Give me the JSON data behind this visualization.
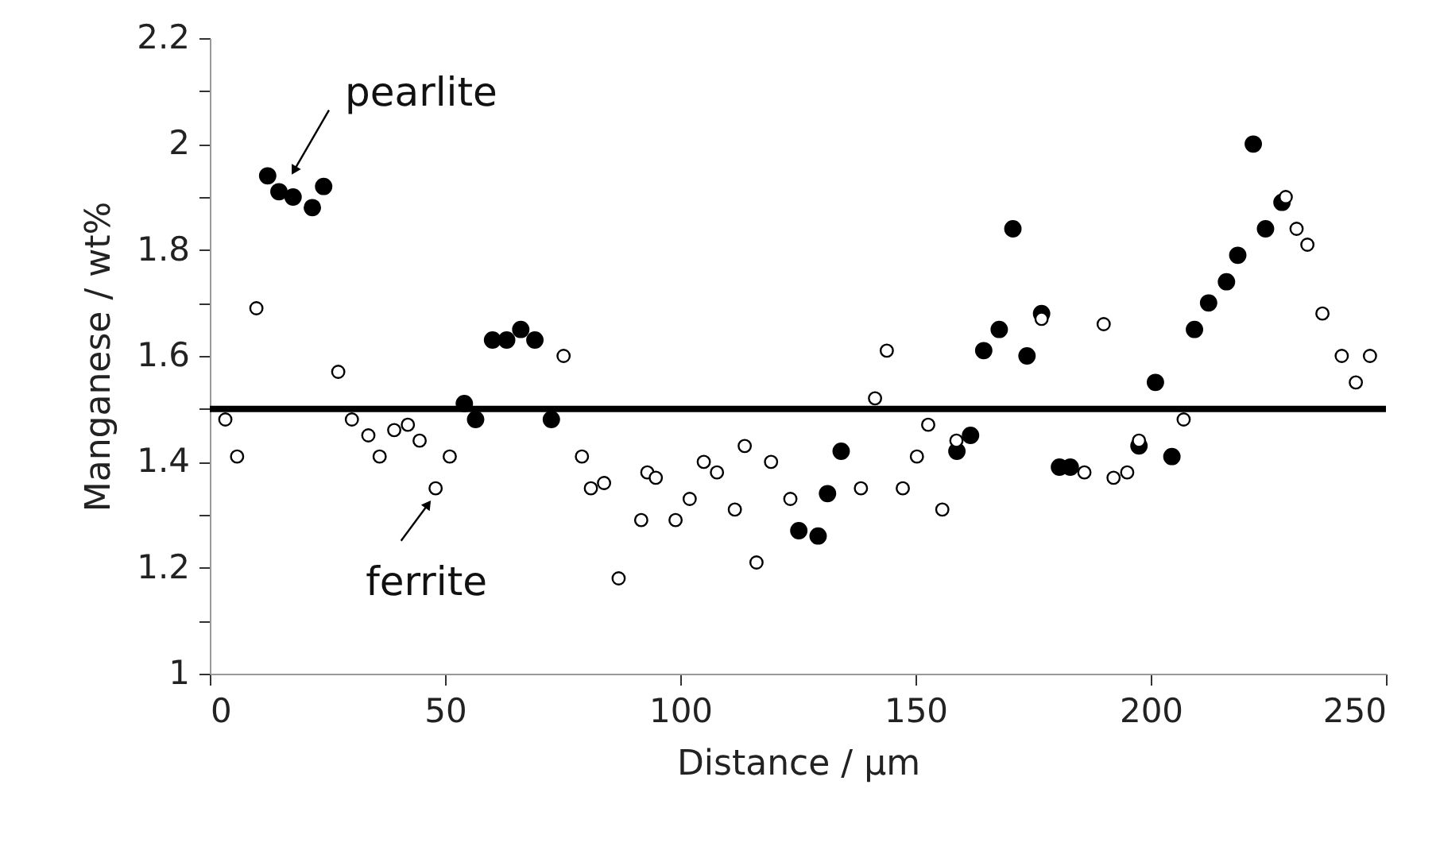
{
  "chart_data": {
    "type": "scatter",
    "xlabel": "Distance / μm",
    "ylabel": "Manganese / wt%",
    "xlim": [
      0,
      250
    ],
    "xticks": [
      0,
      50,
      100,
      150,
      200,
      250
    ],
    "ylim": [
      1,
      2.2
    ],
    "yticks": [
      1,
      {
        "value": 1.1,
        "label": null
      },
      1.2,
      {
        "value": 1.3,
        "label": null
      },
      1.4,
      {
        "value": 1.5,
        "label": null
      },
      1.6,
      {
        "value": 1.7,
        "label": null
      },
      1.8,
      {
        "value": 1.9,
        "label": null
      },
      2,
      {
        "value": 2.1,
        "label": null
      },
      2.2
    ],
    "grid": false,
    "marker": "circle",
    "series": [
      {
        "color": "#000000",
        "x": [
          12.3,
          14.7,
          17.7,
          21.8,
          24.2,
          54.1,
          56.5,
          60.1,
          63.1,
          66.1,
          69.1,
          72.6,
          125.2,
          129.3,
          131.3,
          134.2,
          158.8,
          161.7,
          164.5,
          167.8,
          170.7,
          173.7,
          176.8,
          180.6,
          182.9,
          197.5,
          201.0,
          204.5,
          209.3,
          212.3,
          216.1,
          218.5,
          221.8,
          224.4,
          227.9
        ],
        "values": [
          1.94,
          1.91,
          1.9,
          1.88,
          1.92,
          1.51,
          1.48,
          1.63,
          1.63,
          1.65,
          1.63,
          1.48,
          1.27,
          1.26,
          1.34,
          1.42,
          1.42,
          1.45,
          1.61,
          1.65,
          1.84,
          1.6,
          1.68,
          1.39,
          1.39,
          1.43,
          1.55,
          1.41,
          1.65,
          1.7,
          1.74,
          1.79,
          2.0,
          1.84,
          1.89
        ]
      },
      {
        "color": "#ffffff",
        "x": [
          3.3,
          5.8,
          9.9,
          27.3,
          30.2,
          33.7,
          36.1,
          39.2,
          42.1,
          44.6,
          48.0,
          51.0,
          75.2,
          79.1,
          81.0,
          83.8,
          86.9,
          91.7,
          93.0,
          94.8,
          99.0,
          102.0,
          105.0,
          107.8,
          111.6,
          113.7,
          116.2,
          119.3,
          123.4,
          138.4,
          141.4,
          143.9,
          147.3,
          150.3,
          152.7,
          155.7,
          158.7,
          176.8,
          185.9,
          190.0,
          192.1,
          195.0,
          197.5,
          207.0,
          228.7,
          231.0,
          233.3,
          236.5,
          240.6,
          243.6,
          246.6
        ],
        "values": [
          1.48,
          1.41,
          1.69,
          1.57,
          1.48,
          1.45,
          1.41,
          1.46,
          1.47,
          1.44,
          1.35,
          1.41,
          1.6,
          1.41,
          1.35,
          1.36,
          1.18,
          1.29,
          1.38,
          1.37,
          1.29,
          1.33,
          1.4,
          1.38,
          1.31,
          1.43,
          1.21,
          1.4,
          1.33,
          1.35,
          1.52,
          1.61,
          1.35,
          1.41,
          1.47,
          1.31,
          1.44,
          1.67,
          1.38,
          1.66,
          1.37,
          1.38,
          1.44,
          1.48,
          1.9,
          1.84,
          1.81,
          1.68,
          1.6,
          1.55,
          1.6
        ]
      }
    ],
    "ref_lines": [
      {
        "axis": "y",
        "value": 1.5,
        "color": "#000000"
      }
    ],
    "annotations": [
      {
        "text": "pearlite",
        "x": 17.9,
        "y": 1.95
      },
      {
        "text": "ferrite",
        "x": 46.4,
        "y": 1.32
      }
    ]
  }
}
